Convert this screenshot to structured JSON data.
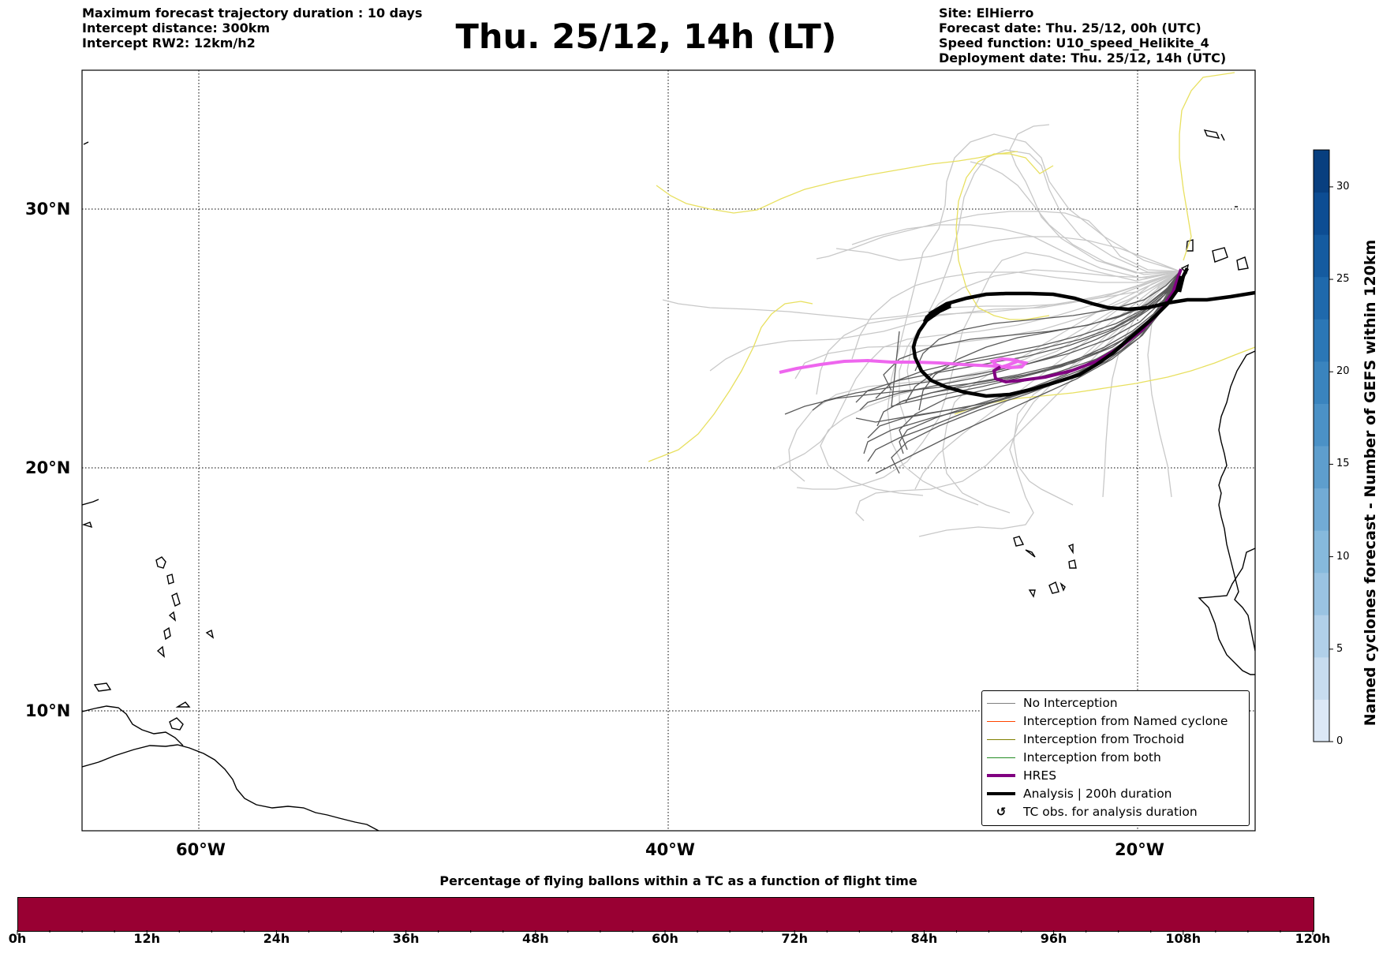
{
  "header": {
    "left_lines": [
      "Maximum forecast trajectory duration : 10 days",
      "Intercept distance: 300km",
      "Intercept RW2: 12km/h2"
    ],
    "title": "Thu. 25/12, 14h (LT)",
    "right_lines": [
      "Site: ElHierro",
      "Forecast date: Thu. 25/12, 00h (UTC)",
      "Speed function: U10_speed_Helikite_4",
      "Deployment date: Thu. 25/12, 14h (UTC)"
    ]
  },
  "map": {
    "lon_labels": [
      "60°W",
      "40°W",
      "20°W"
    ],
    "lat_labels": [
      "30°N",
      "20°N",
      "10°N"
    ],
    "lon_ticks": [
      -60,
      -40,
      -20
    ],
    "lat_ticks": [
      30,
      20,
      10
    ],
    "extent": {
      "lon_min": -65,
      "lon_max": -15,
      "lat_min": 5.3,
      "lat_max": 35.3
    },
    "colors": {
      "no_interception": "#c8c8c8",
      "no_interception_dark": "#5a5a5a",
      "named_cyclone": "#ff4500",
      "trochoid": "#808000",
      "both": "#228b22",
      "hres": "#800080",
      "hres_light": "#ee66ee",
      "analysis": "#000000",
      "yellow_track": "#e8e060"
    }
  },
  "legend": {
    "items": [
      {
        "label": "No Interception",
        "color": "#808080",
        "width": 1.5,
        "type": "line"
      },
      {
        "label": "Interception from Named cyclone",
        "color": "#ff4500",
        "width": 1.5,
        "type": "line"
      },
      {
        "label": "Interception from Trochoid",
        "color": "#808000",
        "width": 1.5,
        "type": "line"
      },
      {
        "label": "Interception from both",
        "color": "#228b22",
        "width": 1.5,
        "type": "line"
      },
      {
        "label": "HRES",
        "color": "#800080",
        "width": 4,
        "type": "line"
      },
      {
        "label": "Analysis | 200h duration",
        "color": "#000000",
        "width": 4,
        "type": "line"
      },
      {
        "label": "TC obs. for analysis duration",
        "icon": "cyclone-symbol-icon",
        "glyph": "↺",
        "type": "glyph"
      }
    ]
  },
  "colorbar": {
    "title": "Named cyclones forecast - Number of GEFS within 120km",
    "ticks": [
      0,
      5,
      10,
      15,
      20,
      25,
      30
    ],
    "min": 0,
    "max": 32,
    "colors": [
      "#dce8f6",
      "#c7dcef",
      "#b1d0e9",
      "#9ac3e2",
      "#86b9dc",
      "#72abd5",
      "#5e9ecd",
      "#4b91c6",
      "#3a84be",
      "#2b77b6",
      "#1f69ac",
      "#155ba0",
      "#0d4d93",
      "#083f7f"
    ]
  },
  "bottom_bar": {
    "title": "Percentage of flying ballons within a TC as a function of flight time",
    "color": "#990033",
    "tick_labels": [
      "0h",
      "12h",
      "24h",
      "36h",
      "48h",
      "60h",
      "72h",
      "84h",
      "96h",
      "108h",
      "120h"
    ],
    "max_hours": 120
  }
}
